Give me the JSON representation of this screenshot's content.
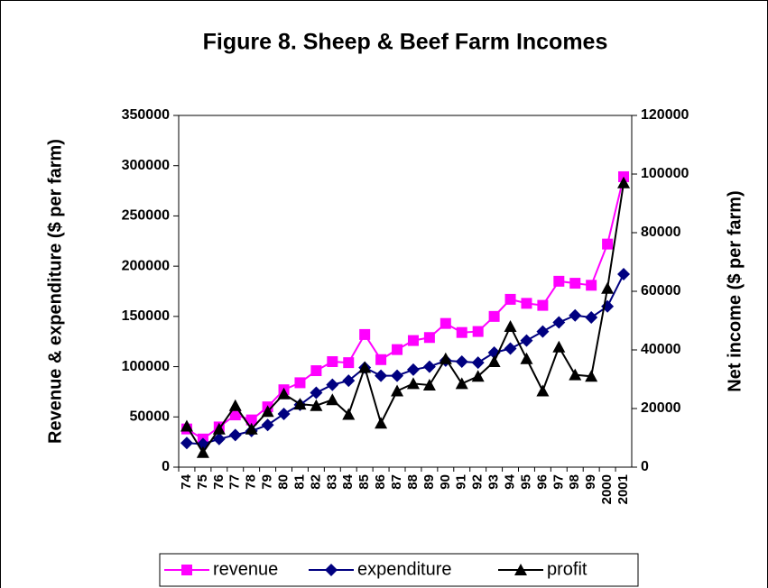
{
  "chart_data": {
    "type": "line",
    "title": "Figure 8.  Sheep & Beef Farm Incomes",
    "y_label": "Revenue & expenditure ($ per farm)",
    "y2_label": "Net income ($ per farm)",
    "categories": [
      "74",
      "75",
      "76",
      "77",
      "78",
      "79",
      "80",
      "81",
      "82",
      "83",
      "84",
      "85",
      "86",
      "87",
      "88",
      "89",
      "90",
      "91",
      "92",
      "93",
      "94",
      "95",
      "96",
      "97",
      "98",
      "99",
      "2000",
      "2001"
    ],
    "series": [
      {
        "name": "revenue",
        "color": "#ff00ff",
        "marker": "square",
        "values": [
          38000,
          28000,
          40000,
          52000,
          47000,
          60000,
          77000,
          84000,
          96000,
          105000,
          104000,
          132000,
          107000,
          117000,
          126000,
          129000,
          143000,
          134000,
          135000,
          150000,
          167000,
          163000,
          161000,
          185000,
          183000,
          181000,
          222000,
          289000
        ]
      },
      {
        "name": "expenditure",
        "color": "#000080",
        "marker": "diamond",
        "values": [
          24000,
          23000,
          28000,
          32000,
          36000,
          42000,
          53000,
          62000,
          74000,
          82000,
          86000,
          99000,
          91000,
          91000,
          97000,
          100000,
          106000,
          105000,
          104000,
          114000,
          118000,
          126000,
          135000,
          144000,
          151000,
          149000,
          160000,
          192000
        ]
      },
      {
        "name": "profit",
        "color": "#000000",
        "marker": "triangle",
        "axis": "y2",
        "values": [
          14000,
          5000,
          13000,
          21000,
          13000,
          19000,
          25000,
          21500,
          21000,
          23000,
          18000,
          34000,
          15000,
          26000,
          28500,
          28000,
          37000,
          28500,
          31000,
          36000,
          48000,
          37000,
          26000,
          41000,
          31500,
          31000,
          61000,
          97000
        ]
      }
    ],
    "ylim": [
      0,
      350000
    ],
    "yticks": [
      0,
      50000,
      100000,
      150000,
      200000,
      250000,
      300000,
      350000
    ],
    "y2lim": [
      0,
      120000
    ],
    "y2ticks": [
      0,
      20000,
      40000,
      60000,
      80000,
      100000,
      120000
    ],
    "legend": "bottom"
  }
}
